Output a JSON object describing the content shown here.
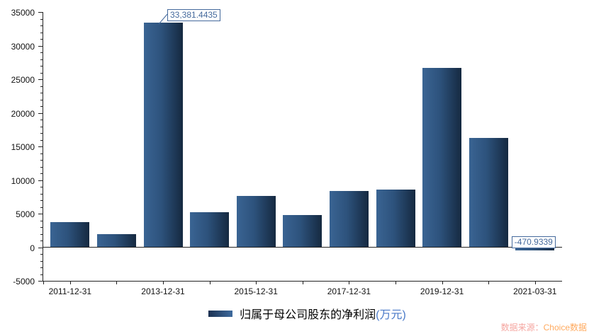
{
  "chart_data": {
    "type": "bar",
    "title": "",
    "series_name": "归属于母公司股东的净利润(万元)",
    "x_tick_labels": [
      "2011-12-31",
      "2013-12-31",
      "2015-12-31",
      "2017-12-31",
      "2019-12-31",
      "2021-03-31"
    ],
    "x_tick_positions": [
      0,
      2,
      4,
      6,
      8,
      10
    ],
    "values": [
      3700,
      1950,
      33381.4435,
      5170,
      7650,
      4800,
      8400,
      8600,
      26650,
      16300,
      -470.9339
    ],
    "ylim": [
      -5000,
      35000
    ],
    "y_tick_labels": [
      "35000",
      "30000",
      "25000",
      "20000",
      "15000",
      "10000",
      "5000",
      "0",
      "-5000"
    ],
    "y_minor_per_major": 5,
    "grid": false,
    "legend_position": "bottom-center",
    "annotations": [
      {
        "index": 2,
        "text": "33,381.4435",
        "leader": true
      },
      {
        "index": 10,
        "text": "-470.9339",
        "leader": false
      }
    ]
  },
  "legend": {
    "label_main": "归属于母公司股东的净利润",
    "label_unit": "(万元)"
  },
  "source": {
    "prefix": "数据来源：",
    "name": "Choice数据"
  },
  "colors": {
    "bar_gradient_left": "#3a6493",
    "bar_gradient_right": "#152940",
    "annotation_blue": "#44699c",
    "legend_unit_blue": "#4a7ac8",
    "source_prefix_pink": "#f5a6a0",
    "source_name_orange": "#ffaa5f",
    "axis": "#222222"
  }
}
